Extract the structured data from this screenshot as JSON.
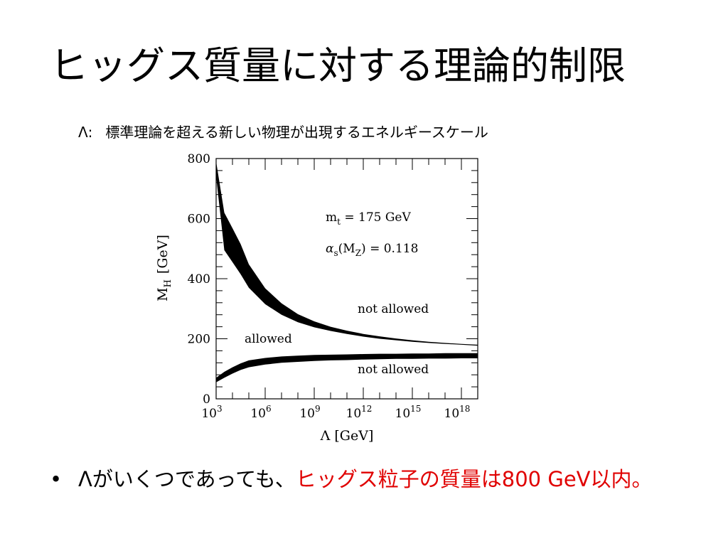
{
  "slide": {
    "title": "ヒッグス質量に対する理論的制限",
    "subtitle_lambda": "Λ:",
    "subtitle_text": "標準理論を超える新しい物理が出現するエネルギースケール",
    "bullet_symbol": "•",
    "bullet_black": "Λがいくつであっても、",
    "bullet_red": "ヒッグス粒子の質量は800 GeV以内。",
    "accent_color": "#e00000"
  },
  "chart_data": {
    "type": "area",
    "x_scale": "log",
    "xlim": [
      1000,
      1e+19
    ],
    "ylim": [
      0,
      800
    ],
    "x_ticks": [
      {
        "value": 1000,
        "base": "10",
        "exp": "3"
      },
      {
        "value": 1000000,
        "base": "10",
        "exp": "6"
      },
      {
        "value": 1000000000,
        "base": "10",
        "exp": "9"
      },
      {
        "value": 1000000000000.0,
        "base": "10",
        "exp": "12"
      },
      {
        "value": 1000000000000000.0,
        "base": "10",
        "exp": "15"
      },
      {
        "value": 1e+18,
        "base": "10",
        "exp": "18"
      }
    ],
    "y_ticks": [
      0,
      200,
      400,
      600,
      800
    ],
    "xlabel": "Λ [GeV]",
    "ylabel_main": "M",
    "ylabel_sub": "H",
    "ylabel_unit": "[GeV]",
    "annotations": {
      "mt_main": "m",
      "mt_sub": "t",
      "mt_value": " = 175 GeV",
      "alpha_main": "α",
      "alpha_sub": "s",
      "alpha_arg_open": "(M",
      "alpha_arg_sub": "Z",
      "alpha_value": ") = 0.118",
      "not_allowed_upper": "not allowed",
      "allowed": "allowed",
      "not_allowed_lower": "not allowed"
    },
    "series": [
      {
        "name": "upper bound",
        "x": [
          1000,
          3162,
          10000,
          31623,
          100000,
          1000000,
          10000000,
          100000000.0,
          1000000000.0,
          10000000000.0,
          100000000000.0,
          1000000000000.0,
          10000000000000.0,
          100000000000000.0,
          1000000000000000.0,
          1e+16,
          1e+17,
          1e+18,
          1e+19
        ],
        "y_low": [
          740,
          495,
          455,
          415,
          370,
          315,
          280,
          255,
          238,
          226,
          216,
          207,
          200,
          195,
          190,
          186,
          183,
          180,
          177
        ],
        "y_high": [
          790,
          620,
          568,
          515,
          448,
          368,
          318,
          282,
          258,
          240,
          227,
          216,
          208,
          201,
          195,
          190,
          186,
          183,
          180
        ]
      },
      {
        "name": "lower bound",
        "x": [
          1000,
          3162,
          10000,
          31623,
          100000,
          1000000,
          10000000,
          100000000.0,
          1000000000.0,
          10000000000.0,
          100000000000.0,
          1000000000000.0,
          10000000000000.0,
          100000000000000.0,
          1000000000000000.0,
          1e+16,
          1e+17,
          1e+18,
          1e+19
        ],
        "y_low": [
          55,
          70,
          84,
          96,
          105,
          114,
          120,
          123,
          126,
          128,
          129,
          131,
          132,
          133,
          133,
          134,
          134,
          135,
          135
        ],
        "y_high": [
          70,
          90,
          105,
          118,
          128,
          136,
          141,
          144,
          146,
          147,
          148,
          149,
          150,
          150,
          151,
          151,
          152,
          152,
          152
        ]
      }
    ]
  }
}
